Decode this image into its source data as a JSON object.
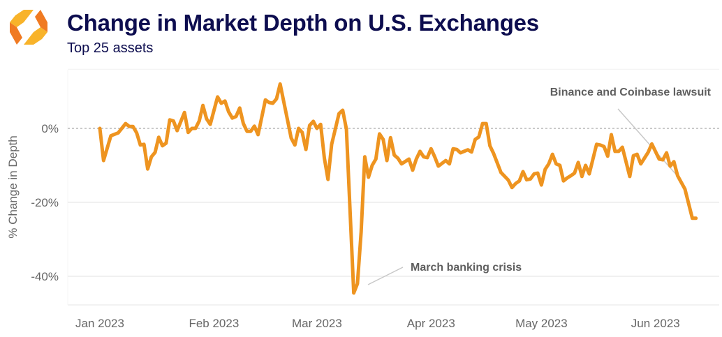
{
  "header": {
    "title": "Change in Market Depth on U.S. Exchanges",
    "subtitle": "Top 25 assets",
    "logo_icon": "orange-hexagon-chevrons-logo"
  },
  "chart_data": {
    "type": "line",
    "title": "Change in Market Depth on U.S. Exchanges",
    "subtitle": "Top 25 assets",
    "xlabel": "",
    "ylabel": "% Change in Depth",
    "ylim": [
      -48,
      16
    ],
    "y_ticks": [
      {
        "value": 0,
        "label": "0%"
      },
      {
        "value": -20,
        "label": "-20%"
      },
      {
        "value": -40,
        "label": "-40%"
      }
    ],
    "x_ticks": [
      {
        "date": "2023-01-01",
        "label": "Jan 2023"
      },
      {
        "date": "2023-02-01",
        "label": "Feb 2023"
      },
      {
        "date": "2023-03-01",
        "label": "Mar 2023"
      },
      {
        "date": "2023-04-01",
        "label": "Apr 2023"
      },
      {
        "date": "2023-05-01",
        "label": "May 2023"
      },
      {
        "date": "2023-06-01",
        "label": "Jun 2023"
      }
    ],
    "grid": "horizontal",
    "zero_line": "dashed",
    "line_color": "#ee9420",
    "annotations": [
      {
        "text": "March banking crisis",
        "date": "2023-03-11",
        "value": -44.5
      },
      {
        "text": "Binance and Coinbase lawsuit",
        "date": "2023-06-05",
        "value": -10
      }
    ],
    "series": [
      {
        "x": [
          "2023-01-01",
          "2023-01-02",
          "2023-01-04",
          "2023-01-06",
          "2023-01-08",
          "2023-01-09",
          "2023-01-10",
          "2023-01-11",
          "2023-01-12",
          "2023-01-13",
          "2023-01-14",
          "2023-01-15",
          "2023-01-16",
          "2023-01-17",
          "2023-01-18",
          "2023-01-19",
          "2023-01-20",
          "2023-01-21",
          "2023-01-22",
          "2023-01-24",
          "2023-01-25",
          "2023-01-26",
          "2023-01-27",
          "2023-01-28",
          "2023-01-29",
          "2023-01-30",
          "2023-01-31",
          "2023-02-02",
          "2023-02-03",
          "2023-02-04",
          "2023-02-05",
          "2023-02-06",
          "2023-02-07",
          "2023-02-08",
          "2023-02-09",
          "2023-02-10",
          "2023-02-11",
          "2023-02-12",
          "2023-02-13",
          "2023-02-15",
          "2023-02-16",
          "2023-02-17",
          "2023-02-18",
          "2023-02-19",
          "2023-02-22",
          "2023-02-23",
          "2023-02-24",
          "2023-02-25",
          "2023-02-26",
          "2023-02-27",
          "2023-02-28",
          "2023-03-01",
          "2023-03-02",
          "2023-03-03",
          "2023-03-04",
          "2023-03-05",
          "2023-03-07",
          "2023-03-08",
          "2023-03-09",
          "2023-03-11",
          "2023-03-12",
          "2023-03-13",
          "2023-03-14",
          "2023-03-15",
          "2023-03-16",
          "2023-03-17",
          "2023-03-18",
          "2023-03-19",
          "2023-03-20",
          "2023-03-21",
          "2023-03-22",
          "2023-03-23",
          "2023-03-24",
          "2023-03-26",
          "2023-03-27",
          "2023-03-28",
          "2023-03-29",
          "2023-03-30",
          "2023-03-31",
          "2023-04-01",
          "2023-04-02",
          "2023-04-03",
          "2023-04-05",
          "2023-04-06",
          "2023-04-07",
          "2023-04-08",
          "2023-04-09",
          "2023-04-11",
          "2023-04-12",
          "2023-04-13",
          "2023-04-14",
          "2023-04-15",
          "2023-04-16",
          "2023-04-17",
          "2023-04-18",
          "2023-04-20",
          "2023-04-22",
          "2023-04-23",
          "2023-04-24",
          "2023-04-25",
          "2023-04-26",
          "2023-04-27",
          "2023-04-28",
          "2023-04-29",
          "2023-04-30",
          "2023-05-01",
          "2023-05-02",
          "2023-05-03",
          "2023-05-04",
          "2023-05-05",
          "2023-05-06",
          "2023-05-07",
          "2023-05-08",
          "2023-05-09",
          "2023-05-10",
          "2023-05-11",
          "2023-05-12",
          "2023-05-13",
          "2023-05-14",
          "2023-05-16",
          "2023-05-17",
          "2023-05-18",
          "2023-05-19",
          "2023-05-20",
          "2023-05-21",
          "2023-05-22",
          "2023-05-23",
          "2023-05-25",
          "2023-05-26",
          "2023-05-27",
          "2023-05-28",
          "2023-05-30",
          "2023-05-31",
          "2023-06-02",
          "2023-06-03",
          "2023-06-04",
          "2023-06-05",
          "2023-06-06",
          "2023-06-07",
          "2023-06-09",
          "2023-06-11",
          "2023-06-12"
        ],
        "y": [
          0,
          -8.7,
          -2,
          -1.2,
          1.3,
          0.5,
          0.5,
          -1.2,
          -4.5,
          -4.3,
          -11,
          -7.7,
          -6.5,
          -2.4,
          -4.7,
          -4,
          2.3,
          2,
          -0.6,
          4.3,
          -1.1,
          0,
          0,
          2,
          6.2,
          2.6,
          1.1,
          8.5,
          6.8,
          7.4,
          4.5,
          2.8,
          3.2,
          5.5,
          1.3,
          -0.8,
          -0.8,
          0.6,
          -1.7,
          7.7,
          7,
          6.8,
          8,
          12,
          -2.6,
          -4.5,
          0,
          -1.1,
          -5.7,
          0.8,
          1.9,
          0,
          1.1,
          -8,
          -13.8,
          -4.3,
          4,
          4.9,
          -0.2,
          -44.5,
          -42,
          -28,
          -7.7,
          -13.2,
          -10,
          -8.3,
          -1.5,
          -3,
          -8.7,
          -2.5,
          -7.2,
          -8.1,
          -9.6,
          -8.3,
          -11.3,
          -8.3,
          -6.2,
          -7.7,
          -7.9,
          -5.5,
          -7.7,
          -10.2,
          -8.7,
          -9.6,
          -5.5,
          -5.7,
          -6.6,
          -5.8,
          -6.4,
          -3,
          -2.3,
          1.3,
          1.3,
          -4.7,
          -6.8,
          -11.9,
          -14,
          -16,
          -14.9,
          -14.2,
          -11.7,
          -13.9,
          -13.7,
          -12.3,
          -12.1,
          -15.3,
          -11.1,
          -9.6,
          -7,
          -9.6,
          -10,
          -14.2,
          -13.4,
          -12.8,
          -12.1,
          -9.2,
          -13,
          -10,
          -12.3,
          -4.3,
          -4.5,
          -4.9,
          -7.5,
          -1.7,
          -6.2,
          -6.2,
          -5.1,
          -13,
          -7.4,
          -7,
          -9.6,
          -6.5,
          -4.2,
          -8.3,
          -8.5,
          -6.6,
          -10.2,
          -9,
          -12.8,
          -16.4,
          -24.3,
          -24.3
        ]
      }
    ]
  }
}
